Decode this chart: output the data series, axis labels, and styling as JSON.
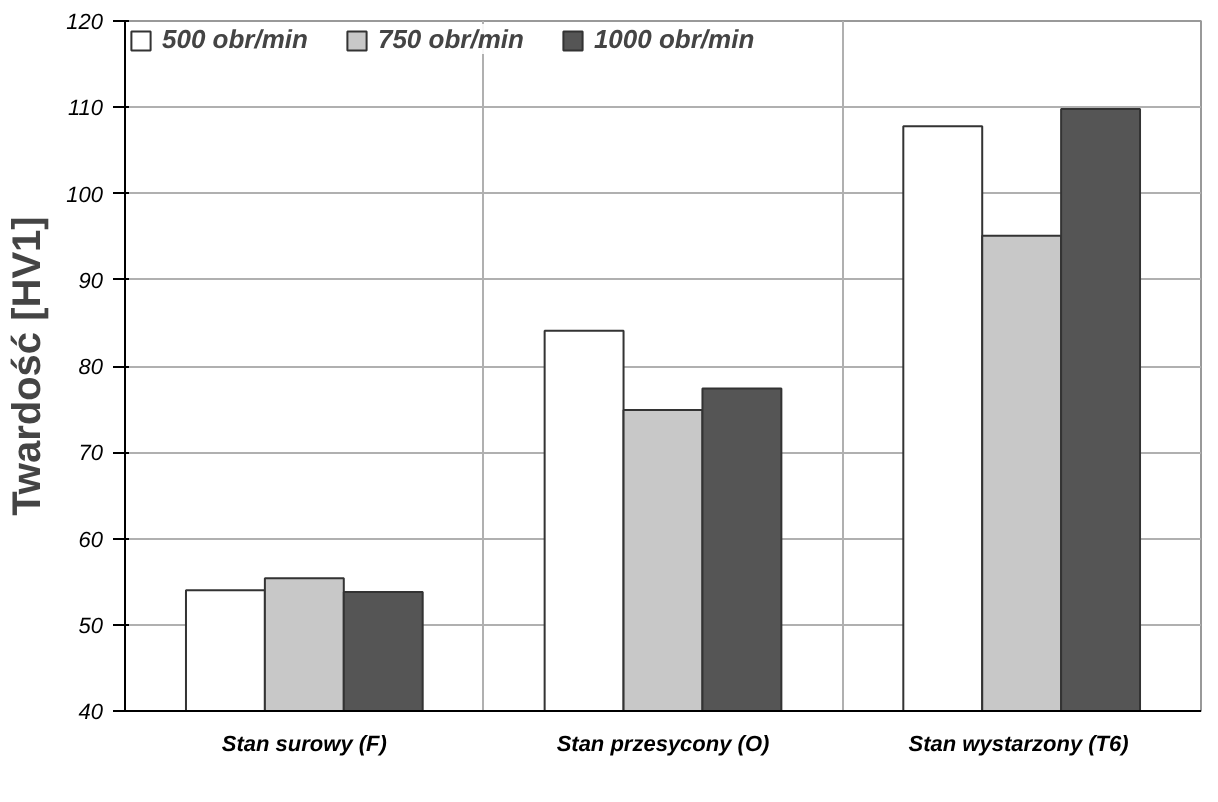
{
  "chart_data": {
    "type": "bar",
    "ylabel": "Twardość [HV1]",
    "categories": [
      "Stan surowy (F)",
      "Stan przesycony (O)",
      "Stan wystarzony  (T6)"
    ],
    "series": [
      {
        "name": "500 obr/min",
        "color": "#ffffff",
        "values": [
          54.0,
          84.1,
          107.8
        ]
      },
      {
        "name": "750 obr/min",
        "color": "#c8c8c8",
        "values": [
          55.4,
          74.9,
          95.1
        ]
      },
      {
        "name": "1000 obr/min",
        "color": "#555555",
        "values": [
          53.8,
          77.4,
          109.8
        ]
      }
    ],
    "ylim": [
      40,
      120
    ],
    "yticks": [
      40,
      50,
      60,
      70,
      80,
      90,
      100,
      110,
      120
    ],
    "grid": true,
    "legend": "top left"
  }
}
